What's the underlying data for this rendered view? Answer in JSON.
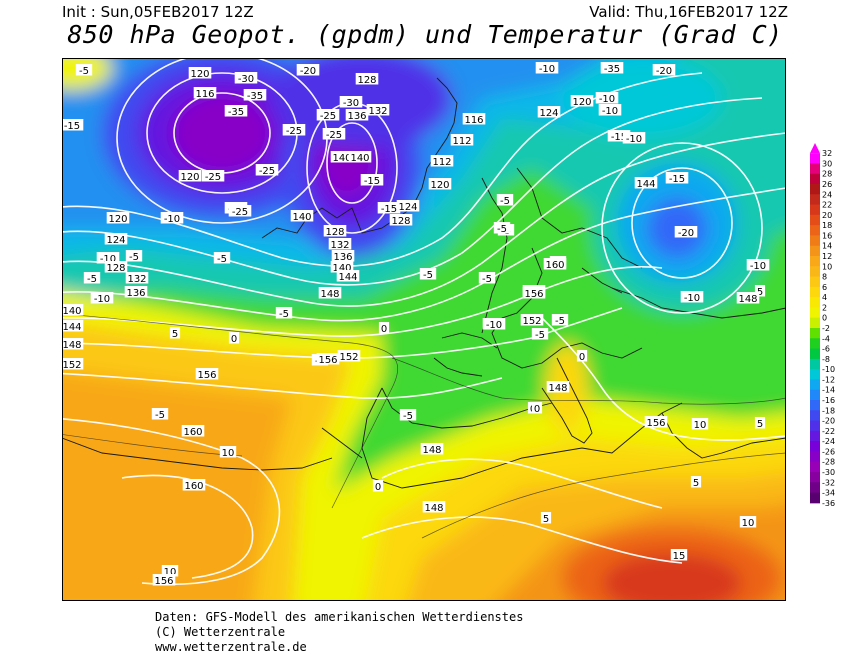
{
  "header": {
    "init": "Init : Sun,05FEB2017 12Z",
    "valid": "Valid: Thu,16FEB2017 12Z",
    "title": "850 hPa Geopot. (gpdm) und Temperatur (Grad C)"
  },
  "footer": {
    "source": "Daten: GFS-Modell des amerikanischen Wetterdienstes",
    "copyright": "(C) Wetterzentrale",
    "url": "www.wetterzentrale.de"
  },
  "legend": {
    "levels": [
      "32",
      "30",
      "28",
      "26",
      "24",
      "22",
      "20",
      "18",
      "16",
      "14",
      "12",
      "10",
      "8",
      "6",
      "4",
      "2",
      "0",
      "-2",
      "-4",
      "-6",
      "-8",
      "-10",
      "-12",
      "-14",
      "-16",
      "-18",
      "-20",
      "-22",
      "-24",
      "-26",
      "-28",
      "-30",
      "-32",
      "-34",
      "-36"
    ],
    "colors": [
      "#ff00ff",
      "#e4007a",
      "#c0003a",
      "#b01818",
      "#c42a1c",
      "#d8381a",
      "#e44d18",
      "#ec6418",
      "#f07c18",
      "#f49418",
      "#f8a818",
      "#fab818",
      "#fcc814",
      "#fcd80c",
      "#f8e804",
      "#f0f400",
      "#c8f000",
      "#60e000",
      "#20d020",
      "#00c840",
      "#00c8a0",
      "#00c8d8",
      "#10a8f0",
      "#2088f8",
      "#3068f8",
      "#4048f0",
      "#5030e8",
      "#6418e0",
      "#7800d8",
      "#8800c8",
      "#9800b8",
      "#8800a0",
      "#700088",
      "#580070"
    ]
  },
  "map": {
    "temperature_labels": [
      {
        "t": "-5"
      },
      {
        "t": "-30"
      },
      {
        "t": "-35"
      },
      {
        "t": "-35"
      },
      {
        "t": "-20"
      },
      {
        "t": "-30"
      },
      {
        "t": "-25"
      },
      {
        "t": "-25"
      },
      {
        "t": "-25"
      },
      {
        "t": "-25"
      },
      {
        "t": "-25"
      },
      {
        "t": "-10"
      },
      {
        "t": "-35"
      },
      {
        "t": "-20"
      },
      {
        "t": "-15"
      },
      {
        "t": "-10"
      },
      {
        "t": "-15"
      },
      {
        "t": "-25"
      },
      {
        "t": "-15"
      },
      {
        "t": "-5"
      },
      {
        "t": "-25"
      },
      {
        "t": "-10"
      },
      {
        "t": "-15"
      },
      {
        "t": "-10"
      },
      {
        "t": "-10"
      },
      {
        "t": "-5"
      },
      {
        "t": "-15"
      },
      {
        "t": "-20"
      },
      {
        "t": "-5"
      },
      {
        "t": "-5"
      },
      {
        "t": "-5"
      },
      {
        "t": "-5"
      },
      {
        "t": "-5"
      },
      {
        "t": "-10"
      },
      {
        "t": "-10"
      },
      {
        "t": "-10"
      },
      {
        "t": "-5"
      },
      {
        "t": "-5"
      },
      {
        "t": "0"
      },
      {
        "t": "0"
      },
      {
        "t": "5"
      },
      {
        "t": "-5"
      },
      {
        "t": "-5"
      },
      {
        "t": "0"
      },
      {
        "t": "0"
      },
      {
        "t": "0"
      },
      {
        "t": "-5"
      },
      {
        "t": "-5"
      },
      {
        "t": "5"
      },
      {
        "t": "5"
      },
      {
        "t": "-5"
      },
      {
        "t": "10"
      },
      {
        "t": "10"
      },
      {
        "t": "10"
      },
      {
        "t": "15"
      },
      {
        "t": "10"
      },
      {
        "t": "5"
      },
      {
        "t": "5"
      },
      {
        "t": "-10"
      },
      {
        "t": "-5"
      },
      {
        "t": "-10"
      },
      {
        "t": "0"
      }
    ],
    "geopotential_labels": [
      {
        "t": "120"
      },
      {
        "t": "116"
      },
      {
        "t": "128"
      },
      {
        "t": "132"
      },
      {
        "t": "136"
      },
      {
        "t": "120"
      },
      {
        "t": "124"
      },
      {
        "t": "116"
      },
      {
        "t": "112"
      },
      {
        "t": "112"
      },
      {
        "t": "120"
      },
      {
        "t": "140"
      },
      {
        "t": "140"
      },
      {
        "t": "120"
      },
      {
        "t": "140"
      },
      {
        "t": "128"
      },
      {
        "t": "124"
      },
      {
        "t": "128"
      },
      {
        "t": "132"
      },
      {
        "t": "136"
      },
      {
        "t": "140"
      },
      {
        "t": "144"
      },
      {
        "t": "148"
      },
      {
        "t": "120"
      },
      {
        "t": "124"
      },
      {
        "t": "128"
      },
      {
        "t": "132"
      },
      {
        "t": "136"
      },
      {
        "t": "140"
      },
      {
        "t": "144"
      },
      {
        "t": "148"
      },
      {
        "t": "152"
      },
      {
        "t": "156"
      },
      {
        "t": "156"
      },
      {
        "t": "160"
      },
      {
        "t": "156"
      },
      {
        "t": "152"
      },
      {
        "t": "148"
      },
      {
        "t": "148"
      },
      {
        "t": "156"
      },
      {
        "t": "160"
      },
      {
        "t": "160"
      },
      {
        "t": "156"
      },
      {
        "t": "148"
      },
      {
        "t": "144"
      },
      {
        "t": "152"
      },
      {
        "t": "156"
      },
      {
        "t": "148"
      }
    ]
  }
}
